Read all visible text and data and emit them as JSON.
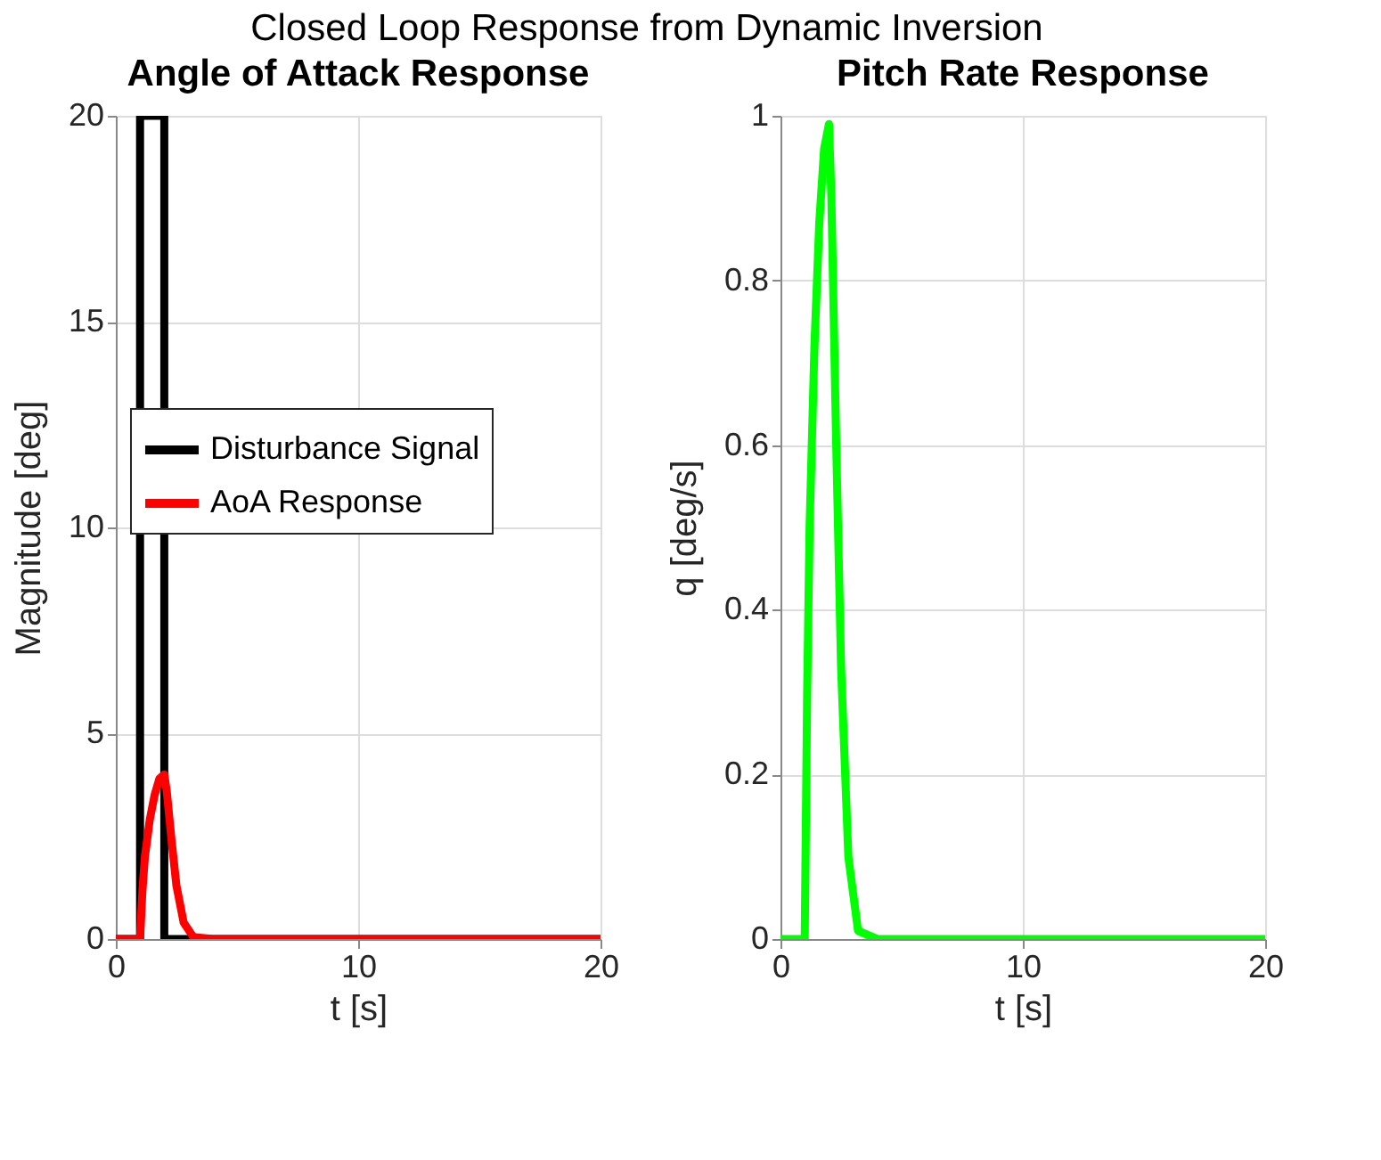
{
  "chart_data": [
    {
      "type": "line",
      "title": "Angle of Attack Response",
      "xlabel": "t [s]",
      "ylabel": "Magnitude [deg]",
      "annotations": [
        "Closed Loop Response from Dynamic Inversion"
      ],
      "xlim": [
        0,
        20
      ],
      "xticks": [
        0,
        10,
        20
      ],
      "ylim": [
        0,
        20
      ],
      "yticks": [
        0,
        5,
        10,
        15,
        20
      ],
      "grid": true,
      "legend": "left",
      "line_style": "solid",
      "marker": "none",
      "series": [
        {
          "name": "Disturbance Signal",
          "color": "#000000",
          "x": [
            0,
            1,
            1,
            2,
            2,
            20
          ],
          "values": [
            0,
            0,
            20,
            20,
            0,
            0
          ]
        },
        {
          "name": "AoA Response",
          "color": "#ff0000",
          "x": [
            0,
            1,
            1.1,
            1.2,
            1.4,
            1.6,
            1.8,
            2,
            2.1,
            2.3,
            2.5,
            2.8,
            3.2,
            4,
            20
          ],
          "values": [
            0,
            0,
            1.2,
            2,
            2.9,
            3.5,
            3.9,
            4,
            3.6,
            2.4,
            1.3,
            0.4,
            0.05,
            0,
            0
          ]
        }
      ]
    },
    {
      "type": "line",
      "title": "Pitch Rate Response",
      "xlabel": "t [s]",
      "ylabel": "q [deg/s]",
      "xlim": [
        0,
        20
      ],
      "xticks": [
        0,
        10,
        20
      ],
      "ylim": [
        0,
        1
      ],
      "yticks": [
        0,
        0.2,
        0.4,
        0.6,
        0.8,
        1
      ],
      "grid": true,
      "line_style": "solid",
      "marker": "none",
      "series": [
        {
          "color": "#00ff00",
          "x": [
            0,
            1,
            1.1,
            1.2,
            1.4,
            1.6,
            1.8,
            2,
            2.1,
            2.3,
            2.5,
            2.8,
            3.2,
            4,
            20
          ],
          "values": [
            0,
            0,
            0.3,
            0.5,
            0.72,
            0.87,
            0.96,
            0.99,
            0.9,
            0.6,
            0.33,
            0.1,
            0.01,
            0,
            0
          ]
        }
      ]
    }
  ]
}
